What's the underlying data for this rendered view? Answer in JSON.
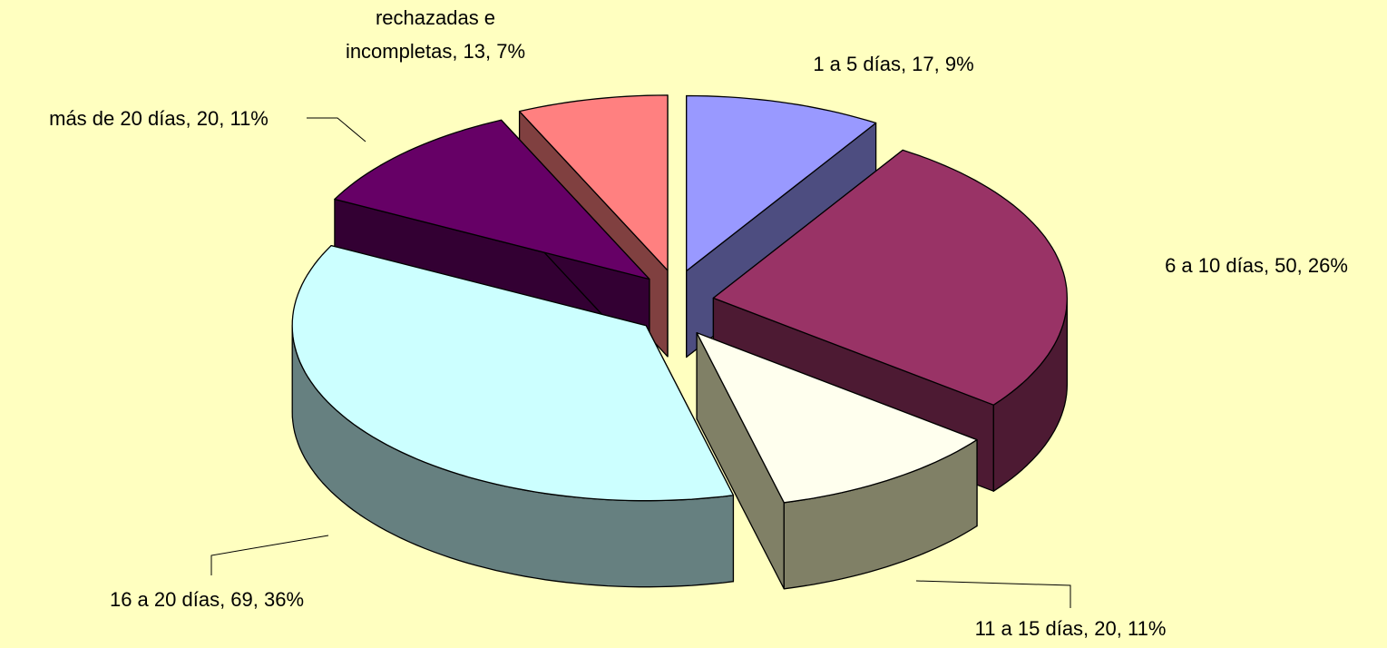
{
  "chart_data": {
    "type": "pie3d",
    "categories": [
      "1 a 5 días",
      "6 a 10 días",
      "11 a 15 días",
      "16 a 20 días",
      "más de 20 días",
      "rechazadas e incompletas"
    ],
    "values": [
      17,
      50,
      20,
      69,
      20,
      13
    ],
    "labels": [
      [
        "1 a 5 días, 17, 9%"
      ],
      [
        "6 a 10 días, 50, 26%"
      ],
      [
        "11 a 15 días, 20, 11%"
      ],
      [
        "16 a 20 días, 69, 36%"
      ],
      [
        "más de 20 días, 20, 11%"
      ],
      [
        "rechazadas e",
        "incompletas, 13, 7%"
      ]
    ],
    "colors": [
      "#9999ff",
      "#993366",
      "#ffffee",
      "#ccffff",
      "#660066",
      "#ff8080"
    ],
    "side_colors": [
      "#4d4d80",
      "#4d1a33",
      "#808066",
      "#668080",
      "#330033",
      "#804040"
    ]
  }
}
